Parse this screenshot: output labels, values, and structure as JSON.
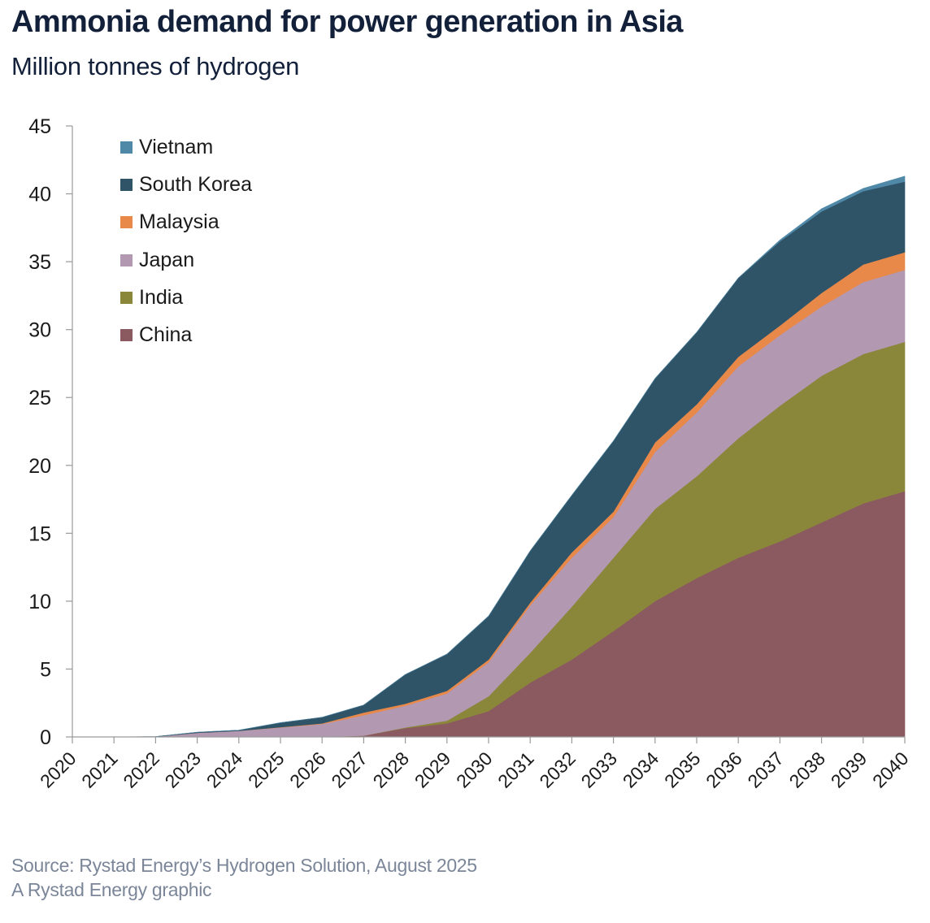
{
  "header": {
    "title": "Ammonia demand for power generation in Asia",
    "subtitle": "Million tonnes of hydrogen"
  },
  "footer": {
    "source": "Source: Rystad Energy’s Hydrogen Solution, August 2025",
    "credit": "A Rystad Energy graphic"
  },
  "legend": {
    "placement": "top-left",
    "items": [
      {
        "label": "Vietnam",
        "color": "#5089a8"
      },
      {
        "label": "South Korea",
        "color": "#2f5468"
      },
      {
        "label": "Malaysia",
        "color": "#e8894a"
      },
      {
        "label": "Japan",
        "color": "#b398b2"
      },
      {
        "label": "India",
        "color": "#8a873b"
      },
      {
        "label": "China",
        "color": "#8b5960"
      }
    ]
  },
  "chart_data": {
    "type": "area",
    "stacked": true,
    "title": "Ammonia demand for power generation in Asia",
    "subtitle": "Million tonnes of hydrogen",
    "xlabel": "",
    "ylabel": "Million tonnes of hydrogen",
    "ylim": [
      0,
      45
    ],
    "yticks": [
      0,
      5,
      10,
      15,
      20,
      25,
      30,
      35,
      40,
      45
    ],
    "grid": false,
    "legend_position": "top-left",
    "categories": [
      "2020",
      "2021",
      "2022",
      "2023",
      "2024",
      "2025",
      "2026",
      "2027",
      "2028",
      "2029",
      "2030",
      "2031",
      "2032",
      "2033",
      "2034",
      "2035",
      "2036",
      "2037",
      "2038",
      "2039",
      "2040"
    ],
    "series": [
      {
        "name": "China",
        "color": "#8b5960",
        "values": [
          0,
          0,
          0,
          0,
          0,
          0,
          0,
          0.1,
          0.65,
          1.0,
          1.9,
          4.0,
          5.7,
          7.8,
          10.0,
          11.7,
          13.2,
          14.4,
          15.8,
          17.2,
          18.1
        ]
      },
      {
        "name": "India",
        "color": "#8a873b",
        "values": [
          0,
          0,
          0,
          0,
          0,
          0,
          0,
          0,
          0.05,
          0.2,
          1.1,
          2.2,
          3.9,
          5.4,
          6.8,
          7.5,
          8.8,
          10.0,
          10.8,
          11.0,
          11.0
        ]
      },
      {
        "name": "Japan",
        "color": "#b398b2",
        "values": [
          0,
          0,
          0.02,
          0.3,
          0.45,
          0.7,
          0.95,
          1.5,
          1.6,
          2.0,
          2.5,
          3.5,
          3.6,
          3.0,
          4.2,
          4.7,
          5.3,
          5.2,
          5.1,
          5.3,
          5.3
        ]
      },
      {
        "name": "Malaysia",
        "color": "#e8894a",
        "values": [
          0,
          0,
          0,
          0,
          0,
          0.02,
          0.05,
          0.2,
          0.15,
          0.2,
          0.2,
          0.2,
          0.4,
          0.4,
          0.7,
          0.6,
          0.7,
          0.7,
          1.0,
          1.3,
          1.3
        ]
      },
      {
        "name": "South Korea",
        "color": "#2f5468",
        "values": [
          0,
          0,
          0.01,
          0.05,
          0.05,
          0.33,
          0.45,
          0.55,
          2.15,
          2.7,
          3.2,
          3.8,
          4.2,
          5.2,
          4.7,
          5.3,
          5.8,
          6.2,
          6.0,
          5.4,
          5.2
        ]
      },
      {
        "name": "Vietnam",
        "color": "#5089a8",
        "values": [
          0,
          0,
          0,
          0,
          0,
          0,
          0,
          0,
          0,
          0,
          0,
          0,
          0,
          0,
          0,
          0,
          0,
          0.1,
          0.2,
          0.2,
          0.4
        ]
      }
    ]
  }
}
